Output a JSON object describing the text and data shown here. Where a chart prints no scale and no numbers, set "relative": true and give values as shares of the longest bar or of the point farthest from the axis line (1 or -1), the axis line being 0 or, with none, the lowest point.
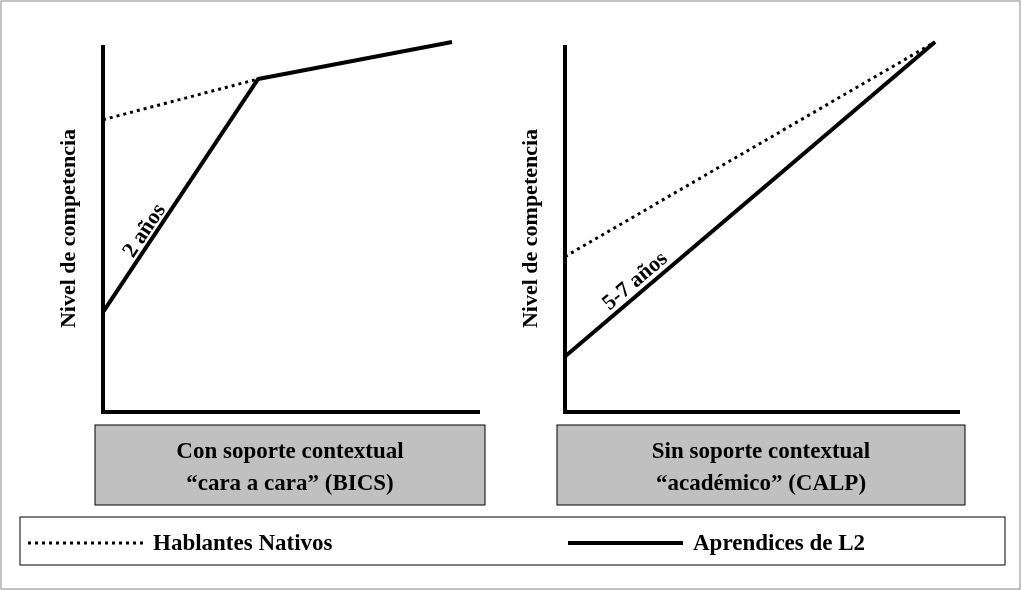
{
  "chart_data": [
    {
      "type": "line",
      "relative": true,
      "ylabel": "Nivel de competencia",
      "xlabel": "Con soporte contextual\n“cara a cara” (BICS)",
      "categories": [
        null,
        null,
        null,
        null,
        null,
        null,
        null,
        null,
        null,
        null
      ],
      "legend": "bottom",
      "annotations": [
        "2 años"
      ],
      "series": [
        {
          "name": "Hablantes Nativos",
          "color": "#000000",
          "line_style": "dotted",
          "values": [
            0.79,
            null,
            null,
            null,
            0.9,
            null,
            null,
            null,
            null,
            null
          ]
        },
        {
          "name": "Aprendices de L2",
          "color": "#000000",
          "line_style": "solid",
          "values": [
            0.27,
            null,
            null,
            null,
            0.9,
            null,
            null,
            null,
            null,
            1.0
          ]
        }
      ]
    },
    {
      "type": "line",
      "relative": true,
      "ylabel": "Nivel de competencia",
      "xlabel": "Sin soporte contextual\n“académico” (CALP)",
      "categories": [
        null,
        null,
        null,
        null,
        null,
        null,
        null,
        null,
        null,
        null
      ],
      "annotations": [
        "5-7 años"
      ],
      "series": [
        {
          "color": "#000000",
          "line_style": "dotted",
          "values": [
            0.42,
            null,
            null,
            null,
            null,
            null,
            null,
            null,
            null,
            1.0
          ]
        },
        {
          "color": "#000000",
          "line_style": "solid",
          "values": [
            0.15,
            null,
            null,
            null,
            null,
            null,
            null,
            null,
            null,
            1.0
          ]
        }
      ]
    }
  ]
}
